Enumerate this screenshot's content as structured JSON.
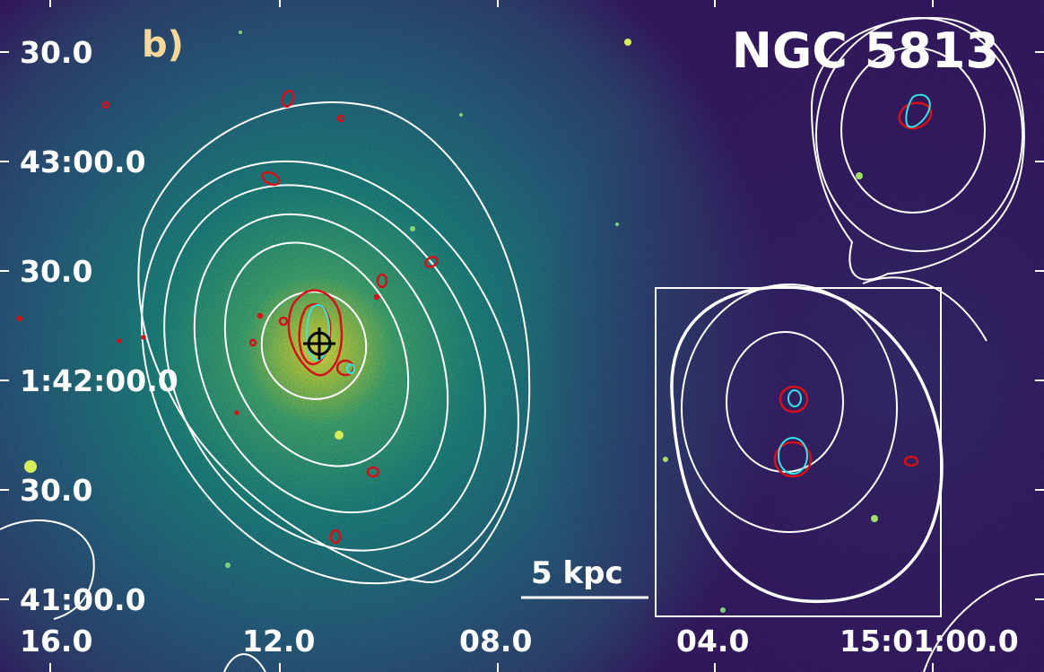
{
  "panel_label": "b)",
  "object_name": "NGC 5813",
  "scale_bar": {
    "label": "5 kpc"
  },
  "axes": {
    "y_ticks": [
      "30.0",
      "43:00.0",
      "30.0",
      "1:42:00.0",
      "30.0",
      "41:00.0"
    ],
    "x_ticks": [
      "16.0",
      "12.0",
      "08.0",
      "04.0",
      "15:01:00.0"
    ]
  },
  "colors": {
    "background_low": "#3b1d6e",
    "background_mid": "#1f8f8a",
    "core": "#e9e94a",
    "contour_white": "#ffffff",
    "contour_red": "#d4111a",
    "contour_cyan": "#34e6e6",
    "panel_label": "#f7d79a"
  },
  "markers": {
    "center": "cross-marker"
  }
}
